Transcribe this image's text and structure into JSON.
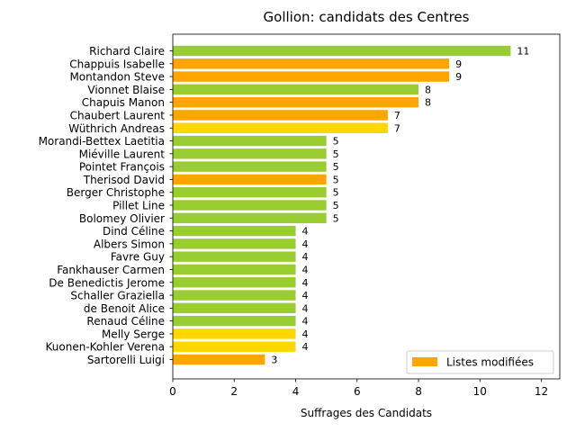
{
  "chart_data": {
    "type": "bar",
    "orientation": "horizontal",
    "title": "Gollion: candidats des Centres",
    "xlabel": "Suffrages des Candidats",
    "ylabel": "",
    "xlim": [
      0,
      12.6
    ],
    "xticks": [
      0,
      2,
      4,
      6,
      8,
      10,
      12
    ],
    "grid": false,
    "legend": {
      "placement": "bottom-right",
      "entries": [
        {
          "label": "Listes modifiées",
          "color": "#ffa500"
        }
      ]
    },
    "colors": {
      "green": "#9acd32",
      "orange": "#ffa500",
      "yellow": "#ffd700"
    },
    "categories": [
      "Richard Claire",
      "Chappuis Isabelle",
      "Montandon Steve",
      "Vionnet Blaise",
      "Chapuis Manon",
      "Chaubert Laurent",
      "Wüthrich Andreas",
      "Morandi-Bettex Laetitia",
      "Miéville Laurent",
      "Pointet François",
      "Therisod David",
      "Berger Christophe",
      "Pillet Line",
      "Bolomey Olivier",
      "Dind Céline",
      "Albers Simon",
      "Favre Guy",
      "Fankhauser Carmen",
      "De Benedictis Jerome",
      "Schaller Graziella",
      "de Benoit Alice",
      "Renaud Céline",
      "Melly Serge",
      "Kuonen-Kohler Verena",
      "Sartorelli Luigi"
    ],
    "values": [
      11,
      9,
      9,
      8,
      8,
      7,
      7,
      5,
      5,
      5,
      5,
      5,
      5,
      5,
      4,
      4,
      4,
      4,
      4,
      4,
      4,
      4,
      4,
      4,
      3
    ],
    "bar_colors": [
      "green",
      "orange",
      "orange",
      "green",
      "orange",
      "orange",
      "yellow",
      "green",
      "green",
      "green",
      "orange",
      "green",
      "green",
      "green",
      "green",
      "green",
      "green",
      "green",
      "green",
      "green",
      "green",
      "green",
      "yellow",
      "yellow",
      "orange"
    ]
  }
}
